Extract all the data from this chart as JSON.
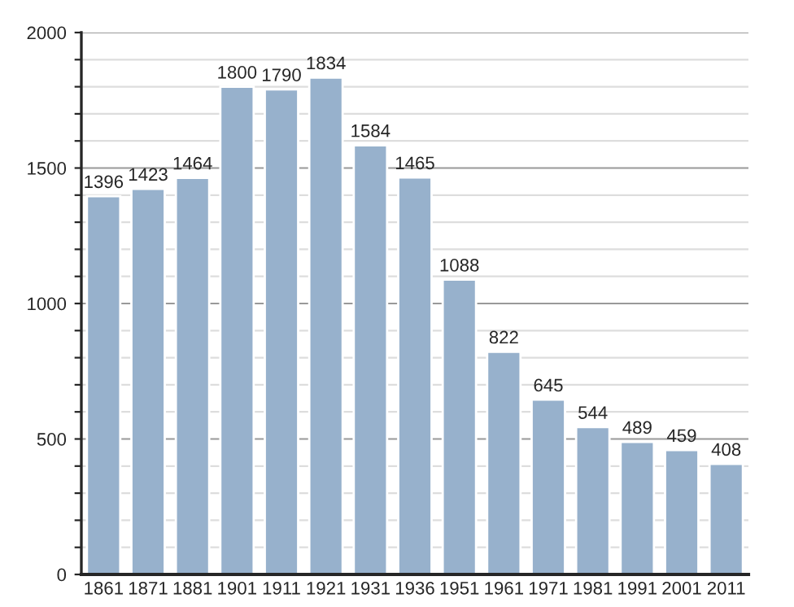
{
  "chart_data": {
    "type": "bar",
    "categories": [
      "1861",
      "1871",
      "1881",
      "1901",
      "1911",
      "1921",
      "1931",
      "1936",
      "1951",
      "1961",
      "1971",
      "1981",
      "1991",
      "2001",
      "2011"
    ],
    "values": [
      1396,
      1423,
      1464,
      1800,
      1790,
      1834,
      1584,
      1465,
      1088,
      822,
      645,
      544,
      489,
      459,
      408
    ],
    "color": "#97b1cc",
    "ylim": [
      0,
      2000
    ],
    "yticks": [
      0,
      {
        "value": 100,
        "label": null
      },
      {
        "value": 200,
        "label": null
      },
      {
        "value": 300,
        "label": null
      },
      {
        "value": 400,
        "label": null
      },
      500,
      {
        "value": 600,
        "label": null
      },
      {
        "value": 700,
        "label": null
      },
      {
        "value": 800,
        "label": null
      },
      {
        "value": 900,
        "label": null
      },
      1000,
      {
        "value": 1100,
        "label": null
      },
      {
        "value": 1200,
        "label": null
      },
      {
        "value": 1300,
        "label": null
      },
      {
        "value": 1400,
        "label": null
      },
      1500,
      {
        "value": 1600,
        "label": null
      },
      {
        "value": 1700,
        "label": null
      },
      {
        "value": 1800,
        "label": null
      },
      {
        "value": 1900,
        "label": null
      },
      2000
    ],
    "grid": "y",
    "data_labels": true
  }
}
